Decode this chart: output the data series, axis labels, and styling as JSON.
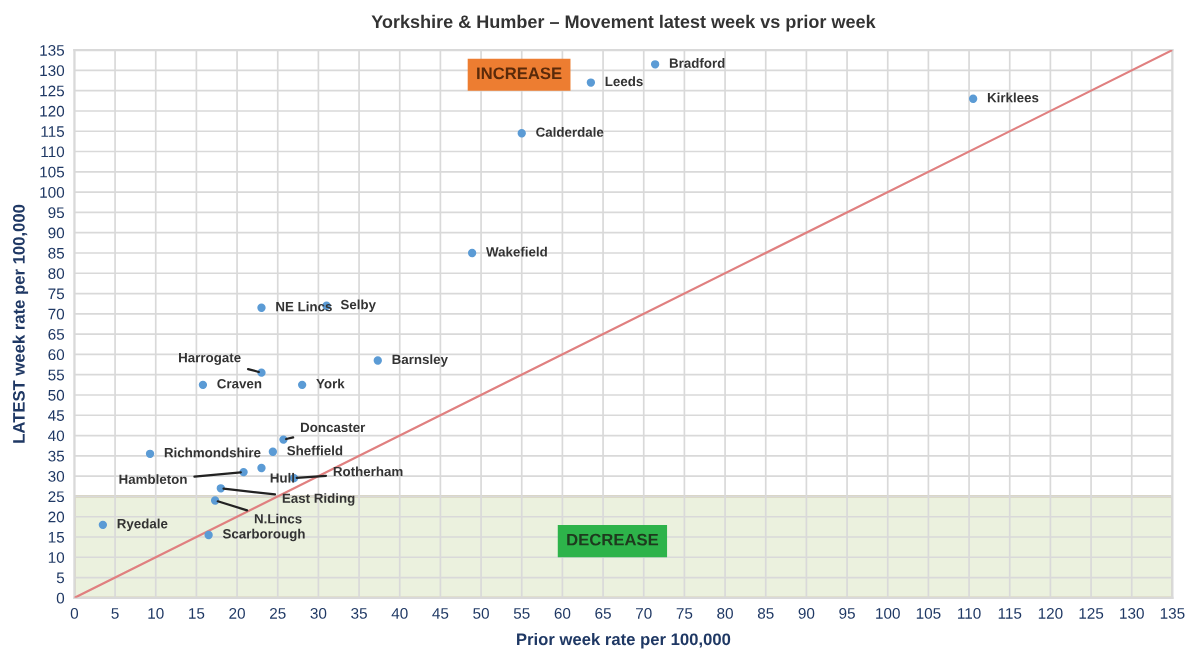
{
  "chart_data": {
    "type": "scatter",
    "title": "Yorkshire & Humber – Movement latest week vs prior week",
    "xlabel": "Prior week rate per 100,000",
    "ylabel": "LATEST week rate per 100,000",
    "series": [
      {
        "color": "#5b9bd5",
        "x": [
          71.4,
          63.5,
          110.5,
          55,
          48.9,
          23,
          31,
          37.3,
          23,
          15.8,
          28,
          25.7,
          24.4,
          9.3,
          20.8,
          23,
          27,
          18,
          17.3,
          3.5,
          16.5
        ],
        "values": [
          131.5,
          127,
          123,
          114.5,
          85,
          71.5,
          72,
          58.5,
          55.5,
          52.5,
          52.5,
          39,
          36,
          35.5,
          31,
          32,
          29.5,
          27,
          24,
          18,
          15.5
        ]
      },
      {
        "type": "line",
        "marker": "none",
        "color": "#e08080",
        "x": [
          0,
          135
        ],
        "values": [
          0,
          135
        ]
      }
    ],
    "annotations": [
      {
        "text": "Bradford",
        "x": 71.4,
        "y": 131.5
      },
      {
        "text": "Leeds",
        "x": 63.5,
        "y": 127
      },
      {
        "text": "Kirklees",
        "x": 110.5,
        "y": 123
      },
      {
        "text": "Calderdale",
        "x": 55,
        "y": 114.5
      },
      {
        "text": "Wakefield",
        "x": 48.9,
        "y": 85
      },
      {
        "text": "NE Lincs",
        "x": 23,
        "y": 71.5
      },
      {
        "text": "Selby",
        "x": 31,
        "y": 72
      },
      {
        "text": "Barnsley",
        "x": 37.3,
        "y": 58.5
      },
      {
        "text": "Harrogate",
        "x": 23,
        "y": 55.5
      },
      {
        "text": "Craven",
        "x": 15.8,
        "y": 52.5
      },
      {
        "text": "York",
        "x": 28,
        "y": 52.5
      },
      {
        "text": "Doncaster",
        "x": 25.7,
        "y": 39
      },
      {
        "text": "Sheffield",
        "x": 24.4,
        "y": 36
      },
      {
        "text": "Richmondshire",
        "x": 9.3,
        "y": 35.5
      },
      {
        "text": "Hambleton",
        "x": 20.8,
        "y": 31
      },
      {
        "text": "Hull",
        "x": 23,
        "y": 32
      },
      {
        "text": "Rotherham",
        "x": 27,
        "y": 29.5
      },
      {
        "text": "East Riding",
        "x": 18,
        "y": 27
      },
      {
        "text": "N.Lincs",
        "x": 17.3,
        "y": 24
      },
      {
        "text": "Ryedale",
        "x": 3.5,
        "y": 18
      },
      {
        "text": "Scarborough",
        "x": 16.5,
        "y": 15.5
      },
      "INCREASE"
    ],
    "bands": [
      {
        "axis": "y",
        "from": 0,
        "to": 25,
        "label": "DECREASE",
        "color": "#ebf1de"
      }
    ],
    "xlim": [
      0,
      135
    ],
    "ylim": [
      0,
      135
    ],
    "xticks": [
      0,
      5,
      10,
      15,
      20,
      25,
      30,
      35,
      40,
      45,
      50,
      55,
      60,
      65,
      70,
      75,
      80,
      85,
      90,
      95,
      100,
      105,
      110,
      115,
      120,
      125,
      130,
      135
    ],
    "yticks": [
      0,
      5,
      10,
      15,
      20,
      25,
      30,
      35,
      40,
      45,
      50,
      55,
      60,
      65,
      70,
      75,
      80,
      85,
      90,
      95,
      100,
      105,
      110,
      115,
      120,
      125,
      130,
      135
    ],
    "grid": true,
    "marker": "circle",
    "legend": false
  }
}
